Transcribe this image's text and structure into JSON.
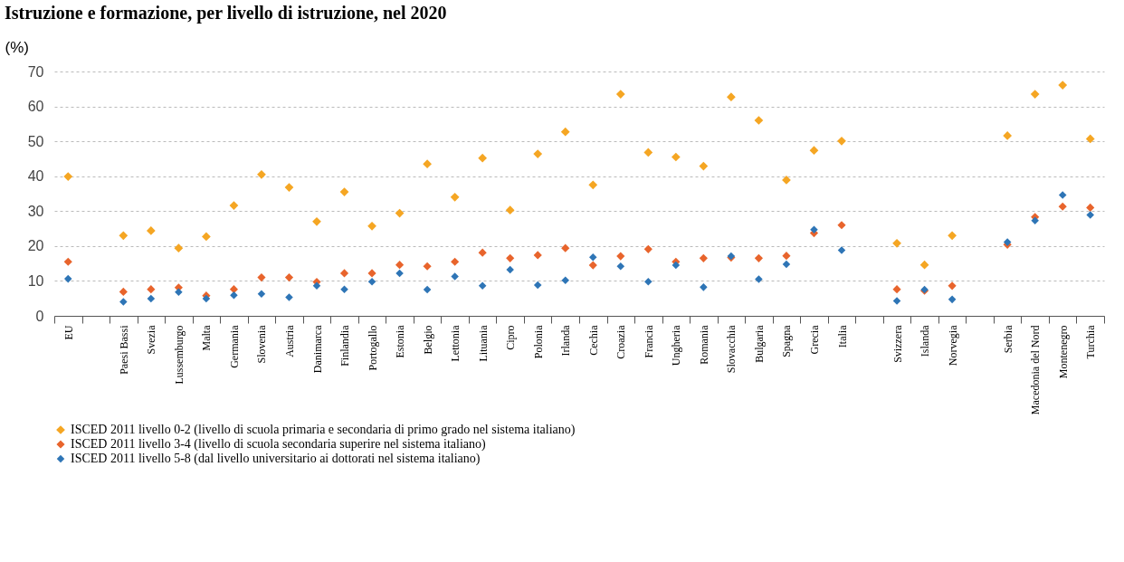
{
  "chart_data": {
    "type": "scatter",
    "title": "Istruzione e formazione, per livello di istruzione, nel 2020",
    "ylabel": "(%)",
    "categories": [
      "EU",
      null,
      "Paesi Bassi",
      "Svezia",
      "Lussemburgo",
      "Malta",
      "Germania",
      "Slovenia",
      "Austria",
      "Danimarca",
      "Finlandia",
      "Portogallo",
      "Estonia",
      "Belgio",
      "Lettonia",
      "Lituania",
      "Cipro",
      "Polonia",
      "Irlanda",
      "Cechia",
      "Croazia",
      "Francia",
      "Ungheria",
      "Romania",
      "Slovacchia",
      "Bulgaria",
      "Spagna",
      "Grecia",
      "Italia",
      null,
      "Svizzera",
      "Islanda",
      "Norvegia",
      null,
      "Serbia",
      "Macedonia del Nord",
      "Montenegro",
      "Turchia"
    ],
    "series": [
      {
        "name": "ISCED 2011 livello 0-2 (livello di scuola primaria e secondaria di primo grado nel sistema italiano)",
        "color": "#f5a623",
        "values": [
          39.9,
          null,
          23.0,
          24.4,
          19.4,
          22.7,
          31.6,
          40.5,
          36.8,
          27.0,
          35.5,
          25.7,
          29.4,
          43.5,
          34.0,
          45.2,
          30.3,
          46.4,
          52.7,
          37.5,
          63.5,
          46.8,
          45.5,
          42.9,
          62.7,
          56.0,
          38.9,
          47.4,
          50.1,
          null,
          20.8,
          14.6,
          23.0,
          null,
          51.6,
          63.5,
          66.1,
          50.7
        ]
      },
      {
        "name": "ISCED 2011 livello 3-4 (livello di scuola secondaria superire nel sistema italiano)",
        "color": "#e8642c",
        "values": [
          15.5,
          null,
          6.9,
          7.6,
          8.1,
          5.8,
          7.6,
          11.0,
          11.0,
          9.7,
          12.2,
          12.2,
          14.6,
          14.2,
          15.5,
          18.1,
          16.5,
          17.4,
          19.4,
          14.5,
          17.1,
          19.1,
          15.5,
          16.5,
          16.7,
          16.5,
          17.2,
          23.7,
          26.0,
          null,
          7.6,
          7.2,
          8.6,
          null,
          20.4,
          28.3,
          31.3,
          31.0
        ]
      },
      {
        "name": "ISCED 2011 livello 5-8 (dal livello universitario ai dottorati nel sistema italiano)",
        "color": "#2e75b6",
        "values": [
          10.6,
          null,
          4.0,
          4.9,
          6.8,
          4.9,
          5.9,
          6.3,
          5.3,
          8.6,
          7.6,
          9.8,
          12.2,
          7.5,
          11.3,
          8.6,
          13.2,
          8.8,
          10.2,
          16.8,
          14.2,
          9.8,
          14.5,
          8.2,
          17.1,
          10.5,
          14.8,
          24.7,
          18.8,
          null,
          4.3,
          7.5,
          4.7,
          null,
          21.1,
          27.3,
          34.6,
          28.9
        ]
      }
    ],
    "ylim": [
      0,
      70
    ],
    "yticks": [
      0,
      10,
      20,
      30,
      40,
      50,
      60,
      70
    ],
    "grid": "y",
    "legend": "bottom",
    "marker": "diamond"
  }
}
